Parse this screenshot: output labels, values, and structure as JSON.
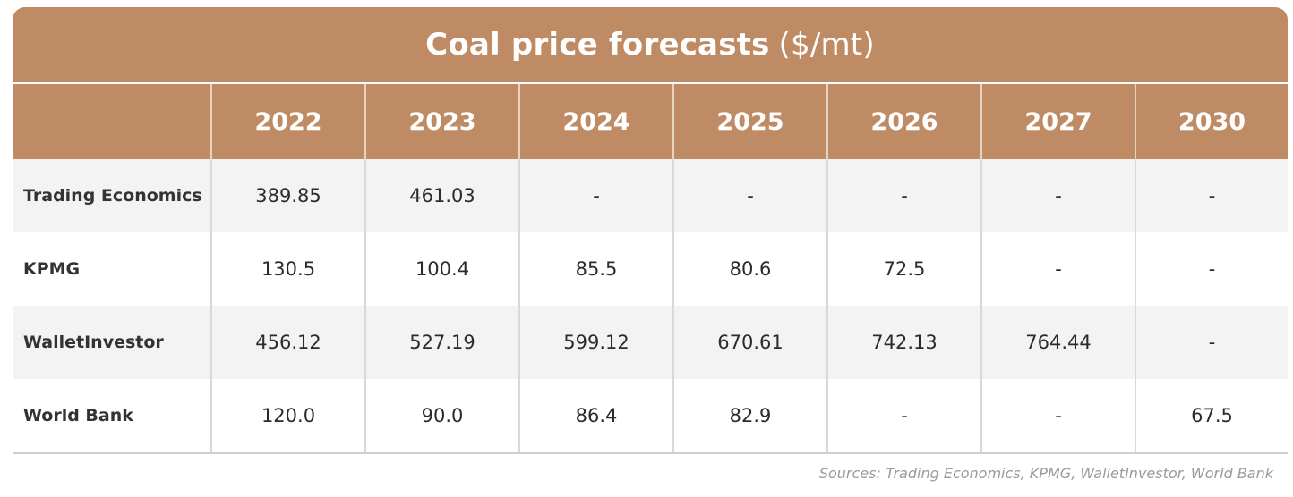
{
  "title": "Coal price forecasts",
  "title_unit": "($/mt)",
  "colors": {
    "header_bg": "#be8b64",
    "header_text": "#ffffff",
    "row_alt_bg": "#f3f3f3"
  },
  "chart_data": {
    "type": "table",
    "title": "Coal price forecasts ($/mt)",
    "columns": [
      "",
      "2022",
      "2023",
      "2024",
      "2025",
      "2026",
      "2027",
      "2030"
    ],
    "rows": [
      {
        "label": "Trading Economics",
        "cells": [
          "389.85",
          "461.03",
          "-",
          "-",
          "-",
          "-",
          "-"
        ]
      },
      {
        "label": "KPMG",
        "cells": [
          "130.5",
          "100.4",
          "85.5",
          "80.6",
          "72.5",
          "-",
          "-"
        ]
      },
      {
        "label": "WalletInvestor",
        "cells": [
          "456.12",
          "527.19",
          "599.12",
          "670.61",
          "742.13",
          "764.44",
          "-"
        ]
      },
      {
        "label": "World Bank",
        "cells": [
          "120.0",
          "90.0",
          "86.4",
          "82.9",
          "-",
          "-",
          "67.5"
        ]
      }
    ]
  },
  "source": "Sources: Trading Economics, KPMG, WalletInvestor, World Bank"
}
